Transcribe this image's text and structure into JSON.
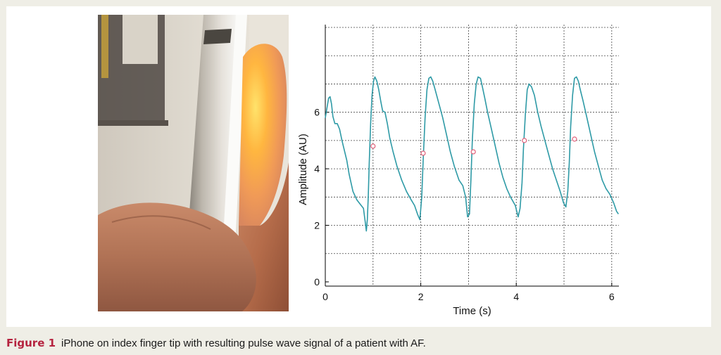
{
  "caption": {
    "label": "Figure 1",
    "text": "iPhone on index finger tip with resulting pulse wave signal of a patient with AF."
  },
  "photo": {
    "subject": "iPhone on index finger tip"
  },
  "chart_data": {
    "type": "line",
    "title": "",
    "xlabel": "Time (s)",
    "ylabel": "Amplitude (AU)",
    "xlim": [
      0,
      6.15
    ],
    "ylim": [
      -0.15,
      9.1
    ],
    "xticks": [
      0,
      2,
      4,
      6
    ],
    "yticks": [
      0,
      2,
      4,
      6
    ],
    "grid": true,
    "line_color": "#2e9aa6",
    "marker_color": "#e0607a",
    "series": [
      {
        "x": [
          0,
          0.04,
          0.07,
          0.1,
          0.13,
          0.16,
          0.2,
          0.25,
          0.3,
          0.35,
          0.45,
          0.5,
          0.58,
          0.66,
          0.73,
          0.8,
          0.83,
          0.86,
          0.88,
          0.9,
          0.92,
          0.95,
          0.98,
          1.01,
          1.04,
          1.08,
          1.12,
          1.16,
          1.2,
          1.25,
          1.3,
          1.35,
          1.42,
          1.5,
          1.6,
          1.7,
          1.8,
          1.87,
          1.93,
          1.98,
          2.02,
          2.05,
          2.09,
          2.13,
          2.17,
          2.21,
          2.25,
          2.3,
          2.38,
          2.46,
          2.54,
          2.62,
          2.7,
          2.8,
          2.88,
          2.94,
          2.98,
          3.02,
          3.05,
          3.08,
          3.12,
          3.16,
          3.2,
          3.25,
          3.29,
          3.34,
          3.4,
          3.48,
          3.56,
          3.64,
          3.72,
          3.8,
          3.88,
          3.98,
          4.04,
          4.08,
          4.12,
          4.15,
          4.19,
          4.23,
          4.27,
          4.32,
          4.38,
          4.45,
          4.52,
          4.6,
          4.68,
          4.76,
          4.84,
          4.92,
          4.99,
          5.04,
          5.08,
          5.11,
          5.14,
          5.18,
          5.22,
          5.26,
          5.3,
          5.34,
          5.4,
          5.48,
          5.56,
          5.64,
          5.72,
          5.8,
          5.88,
          5.96,
          6.04,
          6.1,
          6.14
        ],
        "y": [
          5.8,
          6.2,
          6.5,
          6.55,
          6.3,
          5.85,
          5.6,
          5.6,
          5.4,
          5.0,
          4.3,
          3.8,
          3.2,
          2.9,
          2.75,
          2.6,
          2.2,
          1.8,
          2.2,
          3.0,
          4.2,
          5.6,
          6.6,
          7.1,
          7.25,
          7.1,
          6.8,
          6.4,
          6.05,
          6.0,
          5.6,
          5.1,
          4.6,
          4.1,
          3.6,
          3.2,
          2.9,
          2.7,
          2.4,
          2.2,
          3.0,
          4.3,
          5.8,
          6.8,
          7.2,
          7.25,
          7.1,
          6.8,
          6.3,
          5.8,
          5.2,
          4.6,
          4.1,
          3.6,
          3.4,
          3.0,
          2.3,
          2.4,
          3.6,
          5.0,
          6.3,
          7.0,
          7.25,
          7.2,
          6.9,
          6.5,
          6.0,
          5.4,
          4.8,
          4.2,
          3.7,
          3.3,
          3.0,
          2.7,
          2.3,
          2.6,
          3.5,
          4.7,
          5.9,
          6.8,
          7.0,
          6.9,
          6.6,
          6.0,
          5.5,
          5.0,
          4.5,
          4.0,
          3.6,
          3.2,
          2.8,
          2.65,
          3.2,
          4.2,
          5.5,
          6.6,
          7.2,
          7.25,
          7.1,
          6.8,
          6.4,
          5.8,
          5.2,
          4.6,
          4.1,
          3.6,
          3.3,
          3.1,
          2.8,
          2.5,
          2.4
        ]
      }
    ],
    "markers": {
      "x": [
        1.0,
        2.05,
        3.1,
        4.17,
        5.22
      ],
      "y": [
        4.8,
        4.55,
        4.6,
        5.0,
        5.05
      ]
    }
  }
}
